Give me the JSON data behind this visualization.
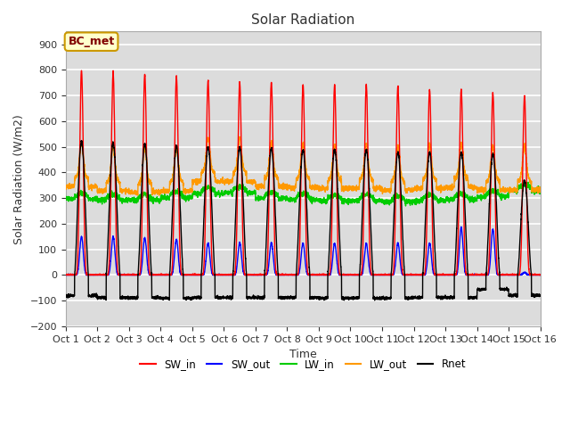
{
  "title": "Solar Radiation",
  "xlabel": "Time",
  "ylabel": "Solar Radiation (W/m2)",
  "ylim": [
    -200,
    950
  ],
  "yticks": [
    -200,
    -100,
    0,
    100,
    200,
    300,
    400,
    500,
    600,
    700,
    800,
    900
  ],
  "xlim": [
    0,
    15
  ],
  "xtick_labels": [
    "Oct 1",
    "Oct 2",
    "Oct 3",
    "Oct 4",
    "Oct 5",
    "Oct 6",
    "Oct 7",
    "Oct 8",
    "Oct 9",
    "Oct 10",
    "Oct 11",
    "Oct 12",
    "Oct 13",
    "Oct 14",
    "Oct 15",
    "Oct 16"
  ],
  "colors": {
    "SW_in": "#ff0000",
    "SW_out": "#0000ff",
    "LW_in": "#00cc00",
    "LW_out": "#ff9900",
    "Rnet": "#000000"
  },
  "linewidths": {
    "SW_in": 1.0,
    "SW_out": 1.0,
    "LW_in": 1.0,
    "LW_out": 1.0,
    "Rnet": 1.0
  },
  "annotation_text": "BC_met",
  "annotation_facecolor": "#ffffcc",
  "annotation_edgecolor": "#cc9900",
  "annotation_textcolor": "#800000",
  "background_color": "#dcdcdc",
  "grid_color": "#ffffff",
  "fig_facecolor": "#ffffff",
  "sw_in_peaks": [
    800,
    790,
    783,
    775,
    760,
    752,
    752,
    743,
    743,
    742,
    738,
    724,
    724,
    710,
    700
  ],
  "sw_out_peaks": [
    150,
    150,
    145,
    140,
    125,
    125,
    125,
    125,
    125,
    125,
    125,
    125,
    185,
    180,
    10
  ],
  "lw_in_base": [
    305,
    300,
    300,
    310,
    325,
    330,
    308,
    303,
    298,
    298,
    293,
    298,
    303,
    313,
    338
  ],
  "lw_out_base": [
    375,
    358,
    352,
    358,
    395,
    395,
    375,
    372,
    368,
    368,
    362,
    368,
    372,
    362,
    362
  ],
  "rnet_peaks": [
    520,
    515,
    510,
    503,
    500,
    498,
    493,
    488,
    488,
    487,
    478,
    478,
    478,
    473,
    368
  ],
  "rnet_night": [
    -80,
    -88,
    -88,
    -90,
    -88,
    -88,
    -88,
    -88,
    -90,
    -90,
    -90,
    -88,
    -88,
    -55,
    -80
  ],
  "n_days": 15,
  "pts_per_day": 288,
  "day_start": 0.28,
  "day_end": 0.72,
  "sharpness": 6
}
